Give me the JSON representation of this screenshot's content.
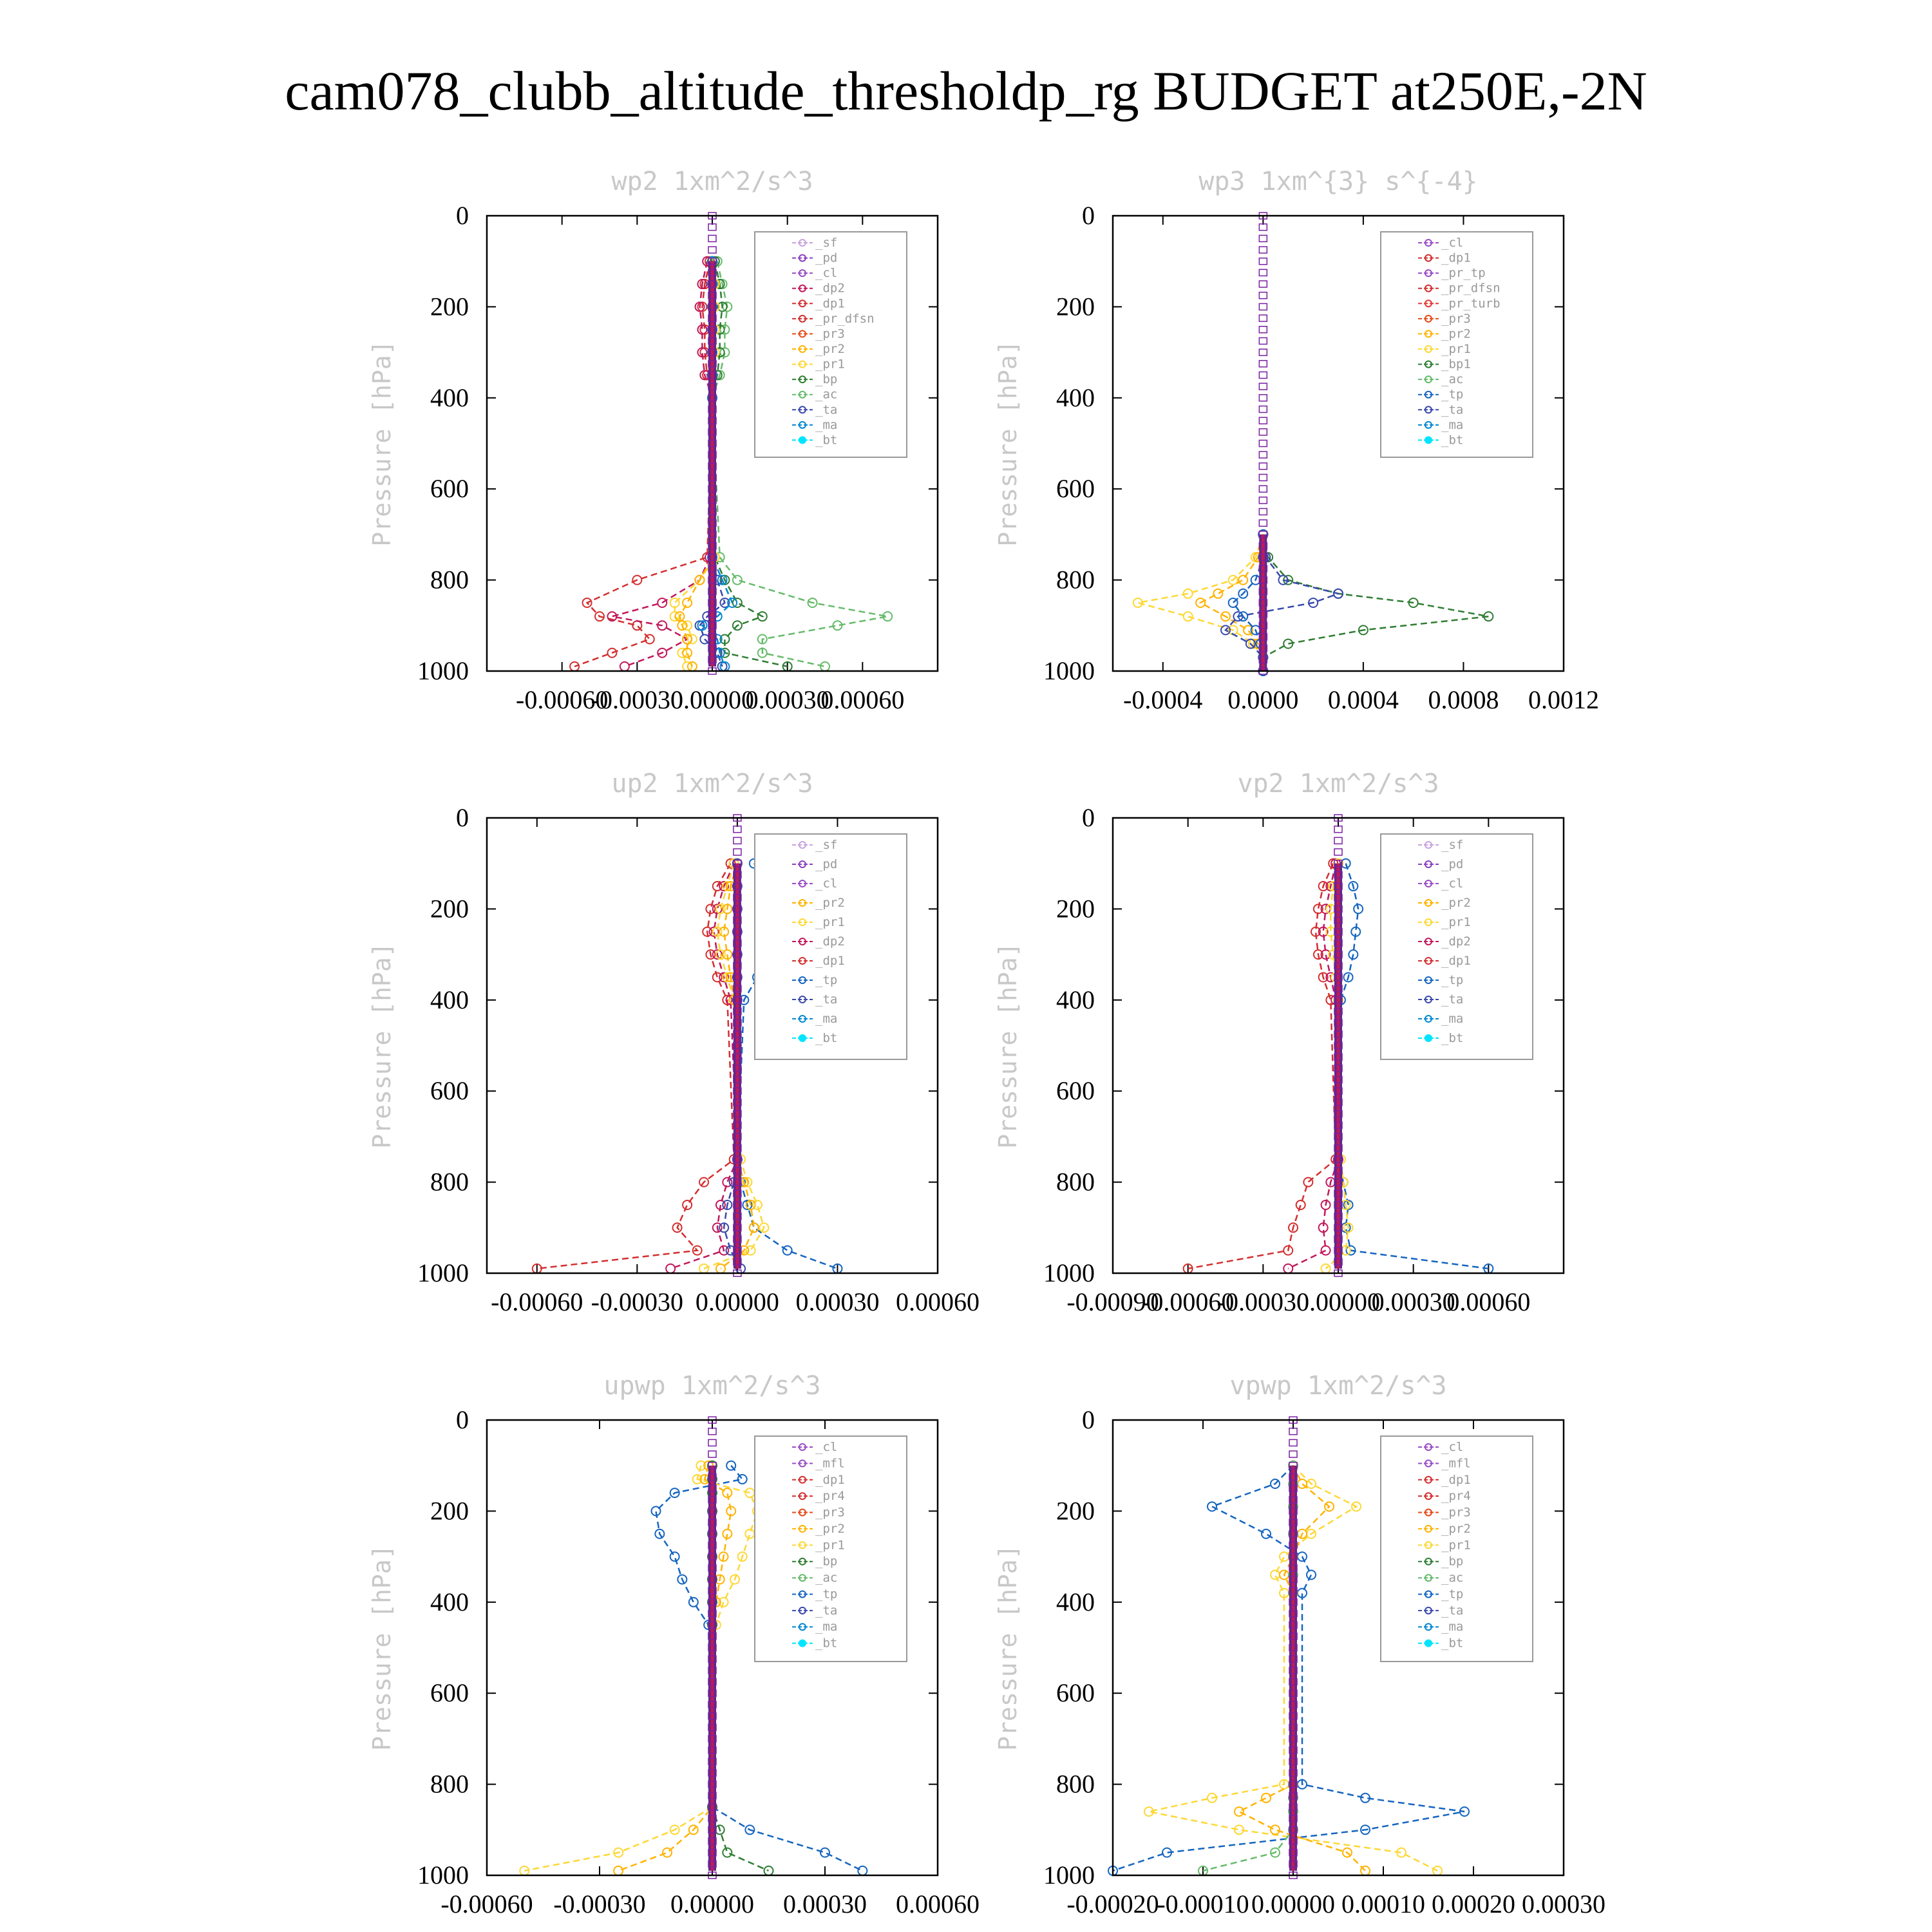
{
  "title": "cam078_clubb_altitude_thresholdp_rg  BUDGET at250E,-2N",
  "colors": {
    "_sf": "#c8a2e0",
    "_pd": "#8b3fbf",
    "_cl": "#9a4cc6",
    "_mfl": "#9a4cc6",
    "_dp2": "#c2185b",
    "_dp1": "#d32f2f",
    "_pr_tp": "#9a4cc6",
    "_pr_dfsn": "#d32f2f",
    "_pr_turb": "#e53935",
    "_pr4": "#d32f2f",
    "_pr3": "#e64a19",
    "_pr2": "#ffb300",
    "_pr1": "#fdd835",
    "_bp": "#2e7d32",
    "_bp1": "#2e7d32",
    "_ac": "#66bb6a",
    "_tp": "#1565c0",
    "_ta": "#3949ab",
    "_ma": "#0288d1",
    "_bt": "#00e5ff"
  },
  "chart_data": [
    {
      "type": "line",
      "title": "wp2   1xm^2/s^3",
      "ylabel": "Pressure [hPa]",
      "xlim": [
        -0.0009,
        0.0009
      ],
      "ylim": [
        1000,
        0
      ],
      "x_ticks": [
        "-0.00060",
        "-0.00030",
        "0.00000",
        "0.00030",
        "0.00060"
      ],
      "x_tick_values": [
        -0.0006,
        -0.0003,
        0,
        0.0003,
        0.0006
      ],
      "y_ticks": [
        "0",
        "200",
        "400",
        "600",
        "800",
        "1000"
      ],
      "y": [
        100,
        150,
        200,
        250,
        300,
        350,
        400,
        750,
        800,
        850,
        880,
        900,
        930,
        960,
        990
      ],
      "legend": [
        "_sf",
        "_pd",
        "_cl",
        "_dp2",
        "_dp1",
        "_pr_dfsn",
        "_pr3",
        "_pr2",
        "_pr1",
        "_bp",
        "_ac",
        "_ta",
        "_ma",
        "_bt"
      ],
      "series": [
        {
          "name": "_dp1",
          "values": [
            -1e-05,
            -3e-05,
            -4e-05,
            -3e-05,
            -3e-05,
            -2e-05,
            0,
            -2e-05,
            -0.0003,
            -0.0005,
            -0.00045,
            -0.0003,
            -0.00025,
            -0.0004,
            -0.00055
          ]
        },
        {
          "name": "_dp2",
          "values": [
            -2e-05,
            -4e-05,
            -5e-05,
            -4e-05,
            -4e-05,
            -3e-05,
            0,
            -1e-05,
            -5e-05,
            -0.0002,
            -0.0004,
            -0.0002,
            -0.0001,
            -0.0002,
            -0.00035
          ]
        },
        {
          "name": "_ac",
          "values": [
            2e-05,
            4e-05,
            6e-05,
            5e-05,
            5e-05,
            3e-05,
            0,
            3e-05,
            0.0001,
            0.0004,
            0.0007,
            0.0005,
            0.0002,
            0.0002,
            0.00045
          ]
        },
        {
          "name": "_bp",
          "values": [
            1e-05,
            3e-05,
            4e-05,
            3e-05,
            3e-05,
            2e-05,
            0,
            1e-05,
            5e-05,
            0.0001,
            0.0002,
            0.0001,
            5e-05,
            5e-05,
            0.0003
          ]
        },
        {
          "name": "_pr1",
          "values": [
            0,
            1e-05,
            1e-05,
            1e-05,
            1e-05,
            0,
            0,
            1e-05,
            -5e-05,
            -0.00015,
            -0.00015,
            -0.0001,
            -8e-05,
            -0.00012,
            -0.0001
          ]
        },
        {
          "name": "_pr2",
          "values": [
            0,
            0,
            0,
            0,
            0,
            0,
            0,
            0,
            -5e-05,
            -0.0001,
            -0.00013,
            -0.00012,
            -0.0001,
            -0.0001,
            -8e-05
          ]
        },
        {
          "name": "_ta",
          "values": [
            0,
            0,
            0,
            0,
            0,
            0,
            0,
            0,
            2e-05,
            5e-05,
            -2e-05,
            -5e-05,
            -3e-05,
            2e-05,
            4e-05
          ]
        },
        {
          "name": "_ma",
          "values": [
            0,
            0,
            0,
            0,
            0,
            0,
            0,
            0,
            4e-05,
            8e-05,
            2e-05,
            -4e-05,
            2e-05,
            3e-05,
            5e-05
          ]
        },
        {
          "name": "_bt",
          "values": [
            0,
            0,
            0,
            0,
            0,
            0,
            0,
            0,
            0,
            0,
            0,
            0,
            0,
            0,
            0
          ]
        }
      ]
    },
    {
      "type": "line",
      "title": "wp3   1xm^{3} s^{-4}",
      "ylabel": "Pressure [hPa]",
      "xlim": [
        -0.0006,
        0.0012
      ],
      "ylim": [
        1000,
        0
      ],
      "x_ticks": [
        "-0.0004",
        "0.0000",
        "0.0004",
        "0.0008",
        "0.0012"
      ],
      "x_tick_values": [
        -0.0004,
        0,
        0.0004,
        0.0008,
        0.0012
      ],
      "y_ticks": [
        "0",
        "200",
        "400",
        "600",
        "800",
        "1000"
      ],
      "y": [
        700,
        750,
        800,
        830,
        850,
        880,
        910,
        940,
        970,
        1000
      ],
      "legend": [
        "_cl",
        "_dp1",
        "_pr_tp",
        "_pr_dfsn",
        "_pr_turb",
        "_pr3",
        "_pr2",
        "_pr1",
        "_bp1",
        "_ac",
        "_tp",
        "_ta",
        "_ma",
        "_bt"
      ],
      "series": [
        {
          "name": "_bp1",
          "values": [
            0,
            2e-05,
            0.0001,
            0.0003,
            0.0006,
            0.0009,
            0.0004,
            0.0001,
            0,
            0
          ]
        },
        {
          "name": "_pr1",
          "values": [
            0,
            -3e-05,
            -0.00012,
            -0.0003,
            -0.0005,
            -0.0003,
            -0.00012,
            -4e-05,
            0,
            0
          ]
        },
        {
          "name": "_pr2",
          "values": [
            0,
            -2e-05,
            -8e-05,
            -0.00018,
            -0.00025,
            -0.00015,
            -6e-05,
            -2e-05,
            0,
            0
          ]
        },
        {
          "name": "_ta",
          "values": [
            0,
            1e-05,
            8e-05,
            0.0003,
            0.0002,
            -0.0001,
            -0.00015,
            -5e-05,
            0,
            0
          ]
        },
        {
          "name": "_tp",
          "values": [
            0,
            0,
            -3e-05,
            -8e-05,
            -0.00012,
            -8e-05,
            -3e-05,
            -1e-05,
            0,
            0
          ]
        },
        {
          "name": "_bt",
          "values": [
            0,
            0,
            0,
            0,
            0,
            0,
            0,
            0,
            0,
            0
          ]
        }
      ]
    },
    {
      "type": "line",
      "title": "up2   1xm^2/s^3",
      "ylabel": "Pressure [hPa]",
      "xlim": [
        -0.00075,
        0.0006
      ],
      "ylim": [
        1000,
        0
      ],
      "x_ticks": [
        "-0.00060",
        "-0.00030",
        "0.00000",
        "0.00030",
        "0.00060"
      ],
      "x_tick_values": [
        -0.0006,
        -0.0003,
        0,
        0.0003,
        0.0006
      ],
      "y_ticks": [
        "0",
        "200",
        "400",
        "600",
        "800",
        "1000"
      ],
      "y": [
        100,
        150,
        200,
        250,
        300,
        350,
        400,
        750,
        800,
        850,
        900,
        950,
        990
      ],
      "legend": [
        "_sf",
        "_pd",
        "_cl",
        "_pr2",
        "_pr1",
        "_dp2",
        "_dp1",
        "_tp",
        "_ta",
        "_ma",
        "_bt"
      ],
      "series": [
        {
          "name": "_tp",
          "values": [
            5e-05,
            0.00012,
            0.00015,
            0.00012,
            0.0001,
            6e-05,
            2e-05,
            0,
            1e-05,
            3e-05,
            5e-05,
            0.00015,
            0.0003
          ]
        },
        {
          "name": "_dp1",
          "values": [
            -2e-05,
            -6e-05,
            -8e-05,
            -9e-05,
            -8e-05,
            -6e-05,
            -3e-05,
            -1e-05,
            -0.0001,
            -0.00015,
            -0.00018,
            -0.00012,
            -0.0006
          ]
        },
        {
          "name": "_dp2",
          "values": [
            -1e-05,
            -4e-05,
            -6e-05,
            -7e-05,
            -6e-05,
            -4e-05,
            -2e-05,
            0,
            -3e-05,
            -5e-05,
            -6e-05,
            -4e-05,
            -0.0002
          ]
        },
        {
          "name": "_pr1",
          "values": [
            -1e-05,
            -3e-05,
            -5e-05,
            -6e-05,
            -5e-05,
            -3e-05,
            -1e-05,
            1e-05,
            3e-05,
            6e-05,
            8e-05,
            4e-05,
            -0.0001
          ]
        },
        {
          "name": "_pr2",
          "values": [
            0,
            -2e-05,
            -3e-05,
            -4e-05,
            -3e-05,
            -2e-05,
            -1e-05,
            0,
            2e-05,
            4e-05,
            5e-05,
            2e-05,
            -5e-05
          ]
        },
        {
          "name": "_ta",
          "values": [
            0,
            0,
            0,
            0,
            0,
            0,
            0,
            0,
            -1e-05,
            -3e-05,
            -4e-05,
            -2e-05,
            1e-05
          ]
        },
        {
          "name": "_bt",
          "values": [
            0,
            0,
            0,
            0,
            0,
            0,
            0,
            0,
            0,
            0,
            0,
            0,
            0
          ]
        }
      ]
    },
    {
      "type": "line",
      "title": "vp2   1xm^2/s^3",
      "ylabel": "Pressure [hPa]",
      "xlim": [
        -0.0009,
        0.0009
      ],
      "ylim": [
        1000,
        0
      ],
      "x_ticks": [
        "-0.00090",
        "-0.00060",
        "-0.00030",
        "0.00000",
        "0.00030",
        "0.00060"
      ],
      "x_tick_values": [
        -0.0009,
        -0.0006,
        -0.0003,
        0,
        0.0003,
        0.0006
      ],
      "y_ticks": [
        "0",
        "200",
        "400",
        "600",
        "800",
        "1000"
      ],
      "y": [
        100,
        150,
        200,
        250,
        300,
        350,
        400,
        750,
        800,
        850,
        900,
        950,
        990
      ],
      "legend": [
        "_sf",
        "_pd",
        "_cl",
        "_pr2",
        "_pr1",
        "_dp2",
        "_dp1",
        "_tp",
        "_ta",
        "_ma",
        "_bt"
      ],
      "series": [
        {
          "name": "_tp",
          "values": [
            3e-05,
            6e-05,
            8e-05,
            7e-05,
            6e-05,
            4e-05,
            1e-05,
            0,
            2e-05,
            4e-05,
            3e-05,
            5e-05,
            0.0006
          ]
        },
        {
          "name": "_dp1",
          "values": [
            -2e-05,
            -6e-05,
            -8e-05,
            -9e-05,
            -8e-05,
            -6e-05,
            -3e-05,
            -1e-05,
            -0.00012,
            -0.00015,
            -0.00018,
            -0.0002,
            -0.0006
          ]
        },
        {
          "name": "_dp2",
          "values": [
            -1e-05,
            -3e-05,
            -5e-05,
            -6e-05,
            -5e-05,
            -3e-05,
            -1e-05,
            0,
            -3e-05,
            -5e-05,
            -6e-05,
            -5e-05,
            -0.0002
          ]
        },
        {
          "name": "_pr1",
          "values": [
            0,
            -2e-05,
            -3e-05,
            -3e-05,
            -2e-05,
            -1e-05,
            0,
            1e-05,
            2e-05,
            3e-05,
            4e-05,
            3e-05,
            -5e-05
          ]
        },
        {
          "name": "_bt",
          "values": [
            0,
            0,
            0,
            0,
            0,
            0,
            0,
            0,
            0,
            0,
            0,
            0,
            0
          ]
        }
      ]
    },
    {
      "type": "line",
      "title": "upwp   1xm^2/s^3",
      "ylabel": "Pressure [hPa]",
      "xlim": [
        -0.0006,
        0.0006
      ],
      "ylim": [
        1000,
        0
      ],
      "x_ticks": [
        "-0.00060",
        "-0.00030",
        "0.00000",
        "0.00030",
        "0.00060"
      ],
      "x_tick_values": [
        -0.0006,
        -0.0003,
        0,
        0.0003,
        0.0006
      ],
      "y_ticks": [
        "0",
        "200",
        "400",
        "600",
        "800",
        "1000"
      ],
      "y": [
        100,
        130,
        160,
        200,
        250,
        300,
        350,
        400,
        450,
        850,
        900,
        950,
        990
      ],
      "legend": [
        "_cl",
        "_mfl",
        "_dp1",
        "_pr4",
        "_pr3",
        "_pr2",
        "_pr1",
        "_bp",
        "_ac",
        "_tp",
        "_ta",
        "_ma",
        "_bt"
      ],
      "series": [
        {
          "name": "_tp",
          "values": [
            5e-05,
            8e-05,
            -0.0001,
            -0.00015,
            -0.00014,
            -0.0001,
            -8e-05,
            -5e-05,
            -1e-05,
            0,
            0.0001,
            0.0003,
            0.0004
          ]
        },
        {
          "name": "_pr1",
          "values": [
            -3e-05,
            -4e-05,
            0.0001,
            0.00012,
            0.0001,
            8e-05,
            6e-05,
            3e-05,
            1e-05,
            0,
            -0.0001,
            -0.00025,
            -0.0005
          ]
        },
        {
          "name": "_pr2",
          "values": [
            -1e-05,
            -2e-05,
            4e-05,
            5e-05,
            4e-05,
            3e-05,
            2e-05,
            1e-05,
            0,
            0,
            -5e-05,
            -0.00012,
            -0.00025
          ]
        },
        {
          "name": "_bp",
          "values": [
            0,
            0,
            0,
            0,
            0,
            0,
            0,
            0,
            0,
            0,
            2e-05,
            4e-05,
            0.00015
          ]
        },
        {
          "name": "_bt",
          "values": [
            0,
            0,
            0,
            0,
            0,
            0,
            0,
            0,
            0,
            0,
            0,
            0,
            0
          ]
        }
      ]
    },
    {
      "type": "line",
      "title": "vpwp   1xm^2/s^3",
      "ylabel": "Pressure [hPa]",
      "xlim": [
        -0.0002,
        0.0003
      ],
      "ylim": [
        1000,
        0
      ],
      "x_ticks": [
        "-0.00020",
        "-0.00010",
        "0.00000",
        "0.00010",
        "0.00020",
        "0.00030"
      ],
      "x_tick_values": [
        -0.0002,
        -0.0001,
        0,
        0.0001,
        0.0002,
        0.0003
      ],
      "y_ticks": [
        "0",
        "200",
        "400",
        "600",
        "800",
        "1000"
      ],
      "y": [
        100,
        140,
        190,
        250,
        300,
        340,
        380,
        800,
        830,
        860,
        900,
        950,
        990
      ],
      "legend": [
        "_cl",
        "_mfl",
        "_dp1",
        "_pr4",
        "_pr3",
        "_pr2",
        "_pr1",
        "_bp",
        "_ac",
        "_tp",
        "_ta",
        "_ma",
        "_bt"
      ],
      "series": [
        {
          "name": "_tp",
          "values": [
            0,
            -2e-05,
            -9e-05,
            -3e-05,
            1e-05,
            2e-05,
            1e-05,
            1e-05,
            8e-05,
            0.00019,
            8e-05,
            -0.00014,
            -0.0002
          ]
        },
        {
          "name": "_pr1",
          "values": [
            0,
            2e-05,
            7e-05,
            2e-05,
            -1e-05,
            -2e-05,
            -1e-05,
            -1e-05,
            -9e-05,
            -0.00016,
            -6e-05,
            0.00012,
            0.00016
          ]
        },
        {
          "name": "_pr2",
          "values": [
            0,
            1e-05,
            4e-05,
            1e-05,
            0,
            -1e-05,
            0,
            0,
            -3e-05,
            -6e-05,
            -2e-05,
            6e-05,
            8e-05
          ]
        },
        {
          "name": "_ac",
          "values": [
            0,
            0,
            0,
            0,
            0,
            0,
            0,
            0,
            0,
            0,
            0,
            -2e-05,
            -0.0001
          ]
        },
        {
          "name": "_bt",
          "values": [
            0,
            0,
            0,
            0,
            0,
            0,
            0,
            0,
            0,
            0,
            0,
            0,
            0
          ]
        }
      ]
    }
  ]
}
